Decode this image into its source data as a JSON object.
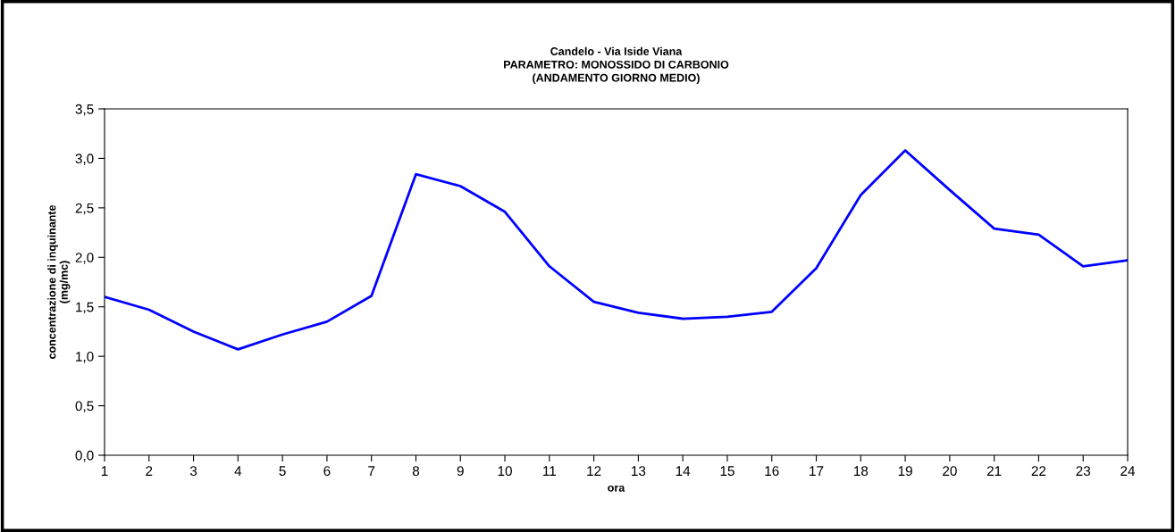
{
  "chart_data": {
    "type": "line",
    "title": "Candelo - Via Iside Viana\nPARAMETRO: MONOSSIDO DI CARBONIO\n(ANDAMENTO GIORNO MEDIO)",
    "xlabel": "ora",
    "ylabel": "concentrazione di inquinante\n(mg/mc)",
    "categories": [
      "1",
      "2",
      "3",
      "4",
      "5",
      "6",
      "7",
      "8",
      "9",
      "10",
      "11",
      "12",
      "13",
      "14",
      "15",
      "16",
      "17",
      "18",
      "19",
      "20",
      "21",
      "22",
      "23",
      "24"
    ],
    "series": [
      {
        "color": "#0000ff",
        "values": [
          1.6,
          1.47,
          1.25,
          1.07,
          1.22,
          1.35,
          1.61,
          2.84,
          2.72,
          2.46,
          1.91,
          1.55,
          1.44,
          1.38,
          1.4,
          1.45,
          1.89,
          2.63,
          3.08,
          2.68,
          2.29,
          2.23,
          1.91,
          1.97
        ]
      }
    ],
    "ylim": [
      0,
      3.5
    ],
    "yticks": [
      {
        "value": 0,
        "label": "0,0"
      },
      {
        "value": 0.5,
        "label": "0,5"
      },
      {
        "value": 1,
        "label": "1,0"
      },
      {
        "value": 1.5,
        "label": "1,5"
      },
      {
        "value": 2,
        "label": "2,0"
      },
      {
        "value": 2.5,
        "label": "2,5"
      },
      {
        "value": 3,
        "label": "3,0"
      },
      {
        "value": 3.5,
        "label": "3,5"
      }
    ],
    "grid": false,
    "marker": "none",
    "line_style": "solid"
  }
}
